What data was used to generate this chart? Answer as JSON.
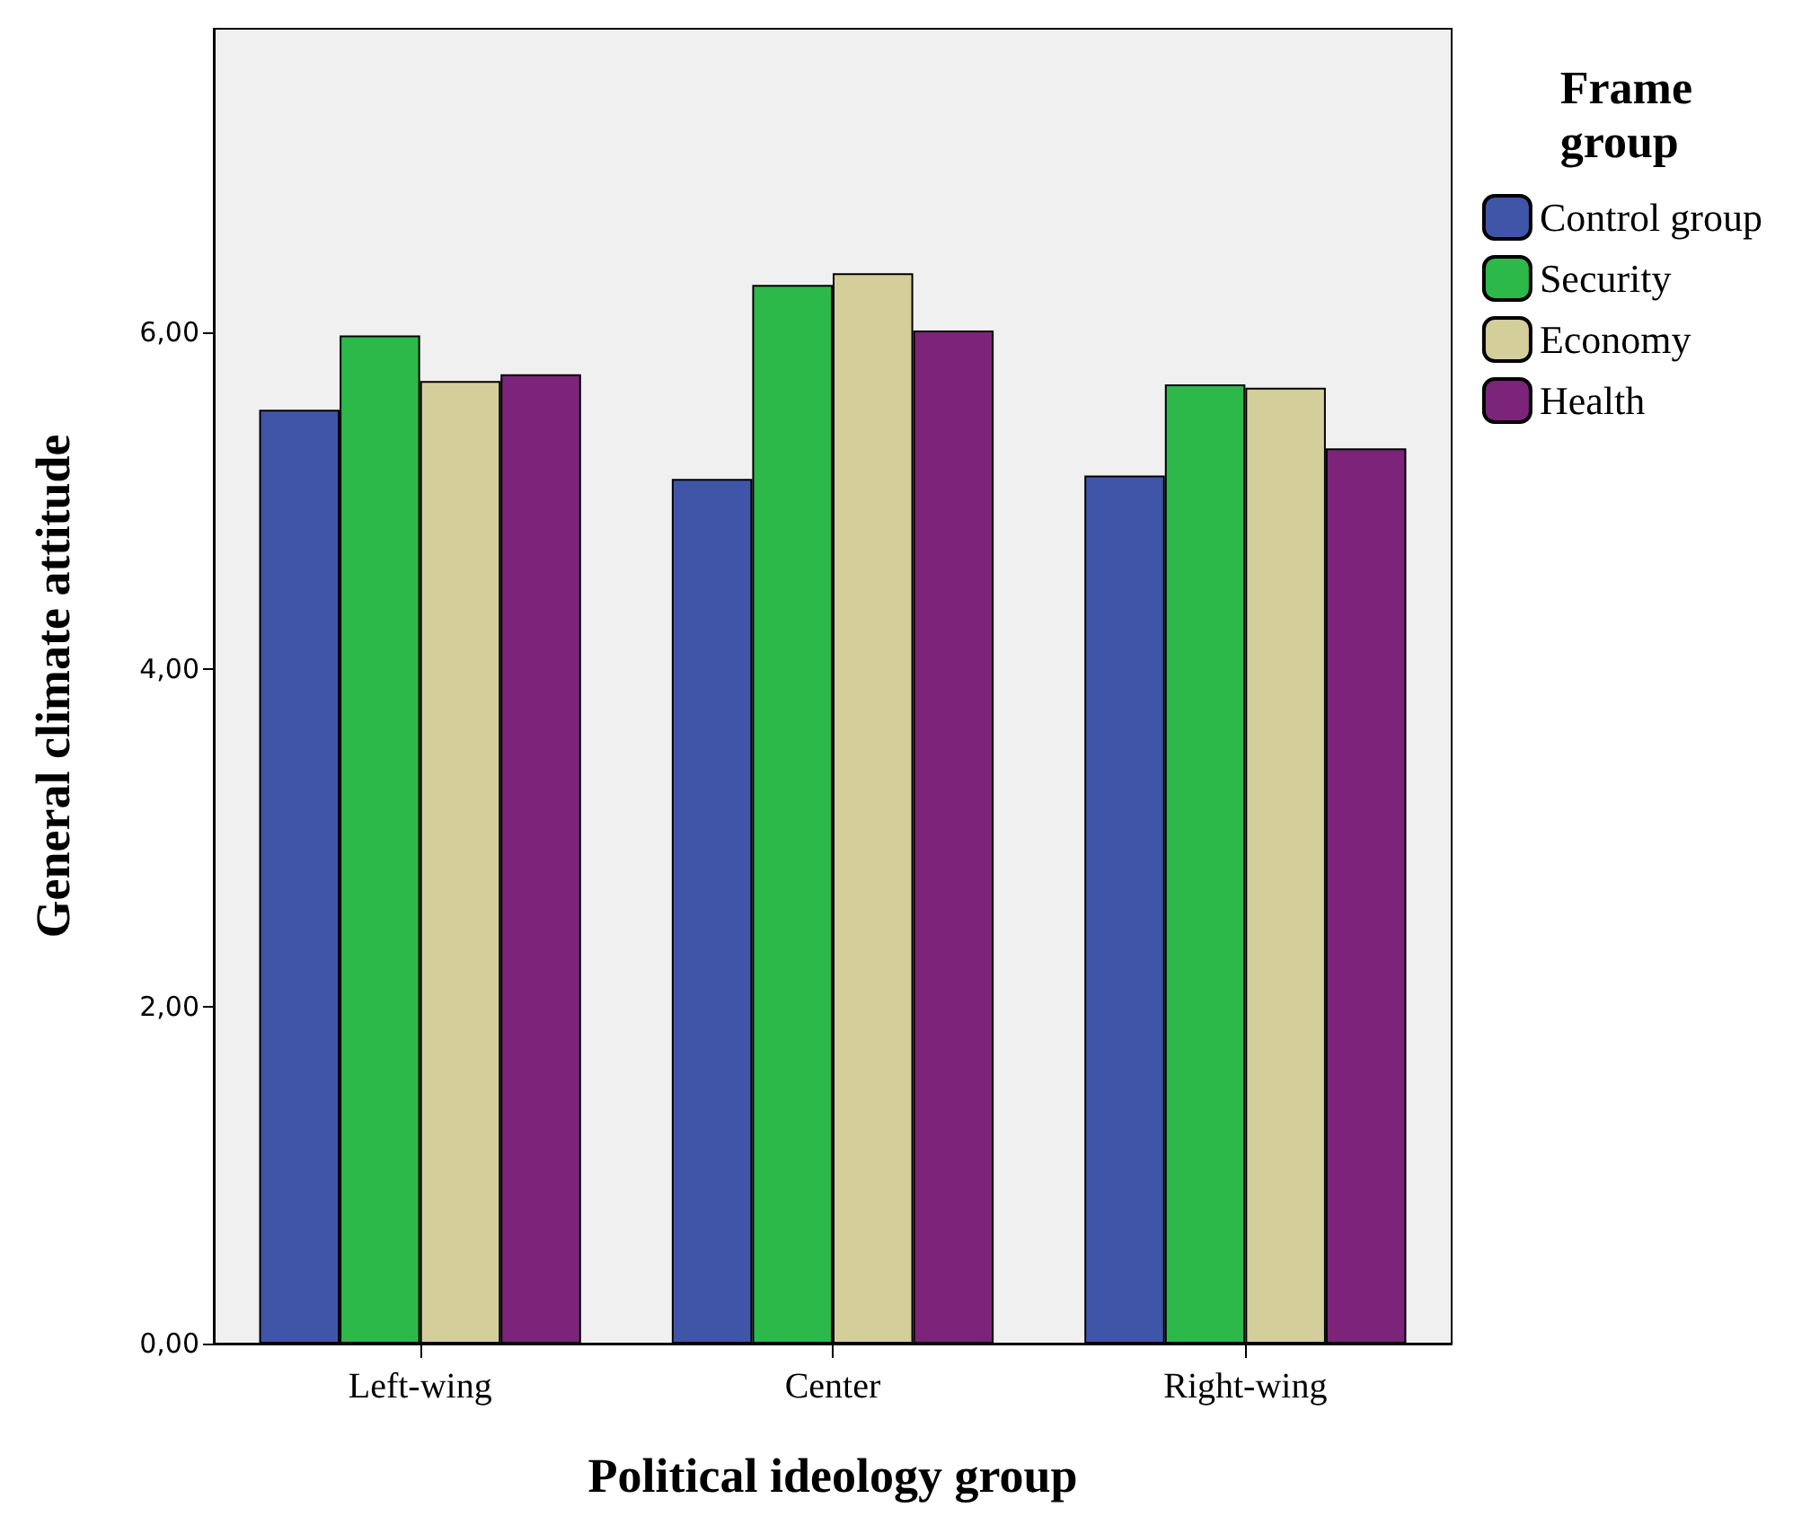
{
  "chart_data": {
    "type": "bar",
    "xlabel": "Political ideology group",
    "ylabel": "General climate attitude",
    "legend_title": "Frame group",
    "legend": "top right",
    "grid": false,
    "categories": [
      "Left-wing",
      "Center",
      "Right-wing"
    ],
    "series": [
      {
        "name": "Control group",
        "color": "#3f56a8",
        "values": [
          5.54,
          5.13,
          5.15
        ]
      },
      {
        "name": "Security",
        "color": "#2db84a",
        "values": [
          5.98,
          6.28,
          5.69
        ]
      },
      {
        "name": "Economy",
        "color": "#d4cf9a",
        "values": [
          5.71,
          6.35,
          5.67
        ]
      },
      {
        "name": "Health",
        "color": "#7b2479",
        "values": [
          5.75,
          6.01,
          5.31
        ]
      }
    ],
    "ylim": [
      0,
      7.8
    ],
    "yticks": [
      {
        "value": 0,
        "label": "0,00"
      },
      {
        "value": 2,
        "label": "2,00"
      },
      {
        "value": 4,
        "label": "4,00"
      },
      {
        "value": 6,
        "label": "6,00"
      }
    ]
  }
}
